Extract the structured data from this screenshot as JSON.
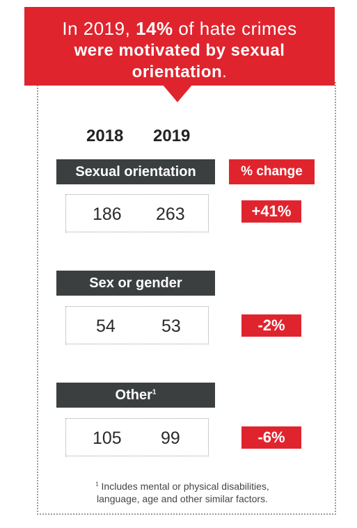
{
  "banner": {
    "prefix": "In 2019, ",
    "highlight": "14%",
    "middle": " of hate crimes",
    "line2": "were motivated by sexual",
    "line3": "orientation",
    "period": "."
  },
  "years": [
    "2018",
    "2019"
  ],
  "change_header": "% change",
  "categories": [
    {
      "name": "Sexual orientation",
      "footnote_mark": "",
      "v2018": "186",
      "v2019": "263",
      "change": "+41%"
    },
    {
      "name": "Sex or gender",
      "footnote_mark": "",
      "v2018": "54",
      "v2019": "53",
      "change": "-2%"
    },
    {
      "name": "Other",
      "footnote_mark": "1",
      "v2018": "105",
      "v2019": "99",
      "change": "-6%"
    }
  ],
  "footnote": {
    "mark": "1",
    "line1": "Includes mental or physical disabilities,",
    "line2": "language, age and other similar factors."
  }
}
